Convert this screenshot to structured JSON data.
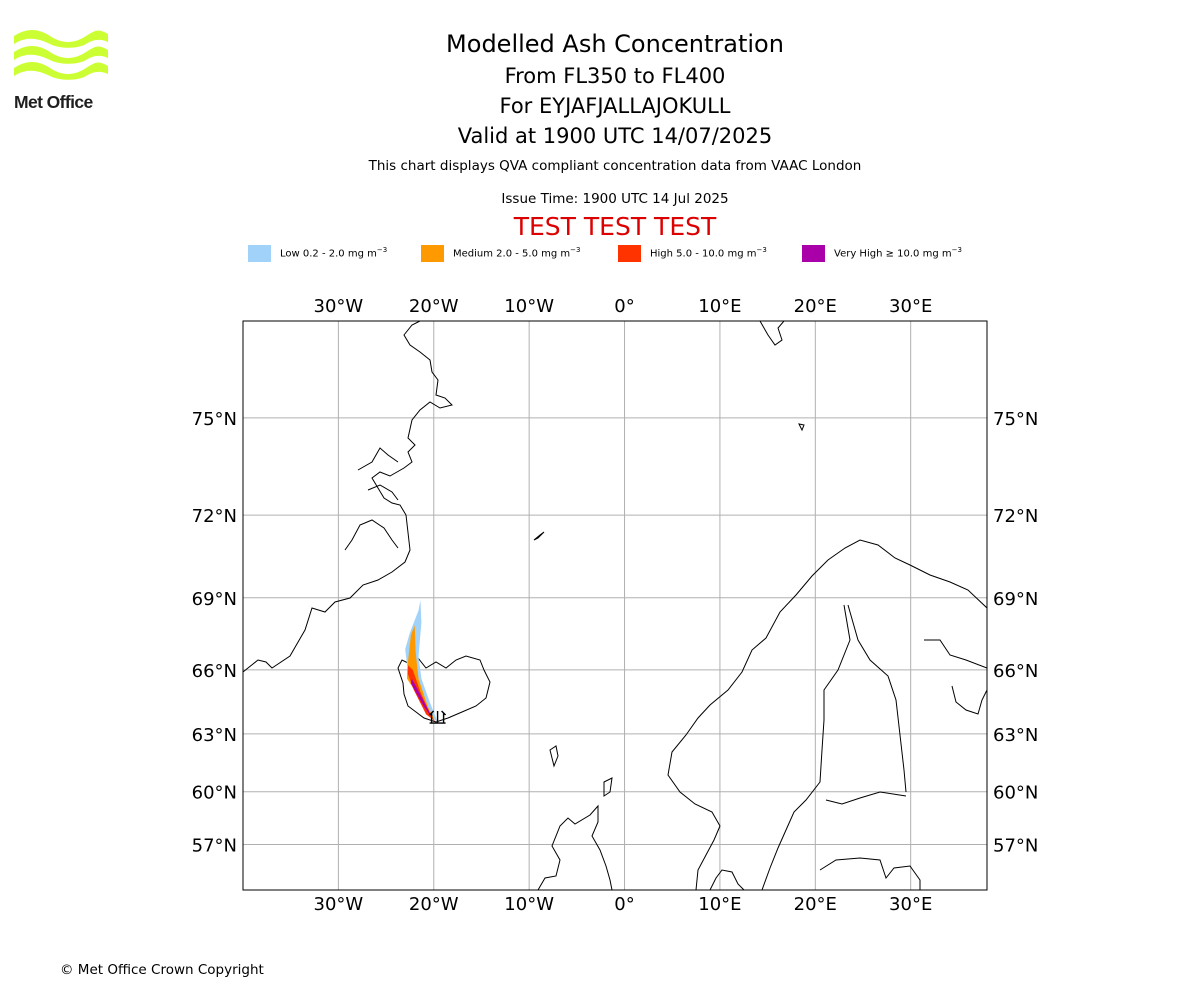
{
  "logo": {
    "text": "Met Office",
    "color": "#ccff33"
  },
  "titles": {
    "main": "Modelled Ash Concentration",
    "level": "From FL350 to FL400",
    "volcano": "For EYJAFJALLAJOKULL",
    "valid": "Valid at 1900 UTC 14/07/2025"
  },
  "notes": {
    "qva": "This chart displays QVA compliant concentration data from VAAC London",
    "issue": "Issue Time: 1900 UTC 14 Jul 2025",
    "test": "TEST TEST TEST"
  },
  "legend": [
    {
      "label": "Low 0.2 - 2.0 mg m",
      "unit_exp": "−3",
      "color": "#a0d2fa"
    },
    {
      "label": "Medium 2.0 - 5.0 mg m",
      "unit_exp": "−3",
      "color": "#ff9900"
    },
    {
      "label": "High 5.0 - 10.0 mg m",
      "unit_exp": "−3",
      "color": "#ff3300"
    },
    {
      "label": "Very High  ≥  10.0 mg m",
      "unit_exp": "−3",
      "color": "#aa00aa"
    }
  ],
  "map": {
    "lon_range": [
      -40,
      38
    ],
    "lat_range": [
      54.2,
      77.5
    ],
    "lon_ticks": [
      {
        "value": -30,
        "label": "30°W"
      },
      {
        "value": -20,
        "label": "20°W"
      },
      {
        "value": -10,
        "label": "10°W"
      },
      {
        "value": 0,
        "label": "0°"
      },
      {
        "value": 10,
        "label": "10°E"
      },
      {
        "value": 20,
        "label": "20°E"
      },
      {
        "value": 30,
        "label": "30°E"
      }
    ],
    "lat_ticks": [
      {
        "value": 57,
        "label": "57°N"
      },
      {
        "value": 60,
        "label": "60°N"
      },
      {
        "value": 63,
        "label": "63°N"
      },
      {
        "value": 66,
        "label": "66°N"
      },
      {
        "value": 69,
        "label": "69°N"
      },
      {
        "value": 72,
        "label": "72°N"
      },
      {
        "value": 75,
        "label": "75°N"
      }
    ],
    "grid": true,
    "volcano_location": {
      "lon": -19.6,
      "lat": 63.63
    },
    "ash_plume": [
      {
        "level": "low",
        "outline": [
          [
            -22.5,
            67.6
          ],
          [
            -21.6,
            68.5
          ],
          [
            -21.4,
            68.9
          ],
          [
            -21.3,
            68.0
          ],
          [
            -21.6,
            66.6
          ],
          [
            -21.3,
            65.6
          ],
          [
            -20.4,
            64.5
          ],
          [
            -19.6,
            63.6
          ],
          [
            -20.5,
            63.9
          ],
          [
            -21.8,
            65.1
          ],
          [
            -22.8,
            66.2
          ],
          [
            -23.0,
            66.9
          ]
        ]
      },
      {
        "level": "medium",
        "outline": [
          [
            -22.8,
            66.0
          ],
          [
            -22.4,
            67.5
          ],
          [
            -22.0,
            67.9
          ],
          [
            -21.9,
            66.8
          ],
          [
            -21.6,
            65.6
          ],
          [
            -20.6,
            64.3
          ],
          [
            -19.9,
            63.7
          ],
          [
            -20.6,
            63.9
          ],
          [
            -21.9,
            65.0
          ],
          [
            -22.8,
            65.6
          ]
        ]
      },
      {
        "level": "high",
        "outline": [
          [
            -22.7,
            66.2
          ],
          [
            -22.2,
            66.0
          ],
          [
            -21.4,
            65.0
          ],
          [
            -20.2,
            63.8
          ],
          [
            -19.8,
            63.6
          ],
          [
            -20.8,
            63.95
          ],
          [
            -22.1,
            65.1
          ],
          [
            -22.7,
            65.8
          ]
        ]
      },
      {
        "level": "very_high",
        "outline": [
          [
            -22.3,
            65.6
          ],
          [
            -21.9,
            65.3
          ],
          [
            -21.2,
            64.7
          ],
          [
            -20.4,
            64.0
          ],
          [
            -20.3,
            63.85
          ],
          [
            -21.0,
            64.3
          ],
          [
            -21.9,
            65.0
          ],
          [
            -22.4,
            65.4
          ]
        ]
      }
    ]
  },
  "copyright": "© Met Office Crown Copyright"
}
